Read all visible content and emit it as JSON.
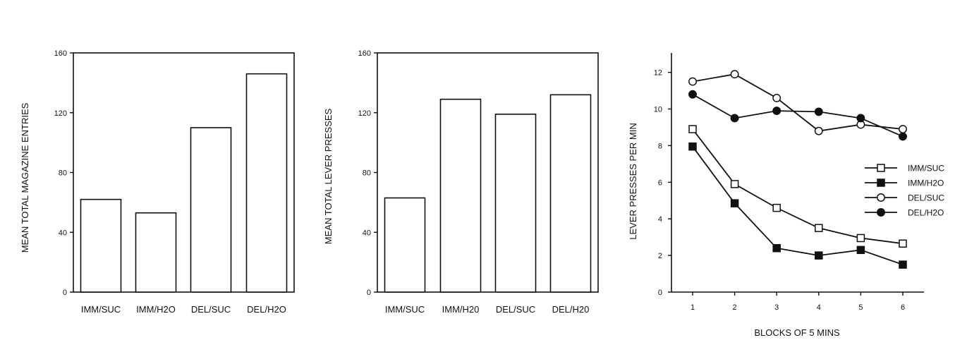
{
  "chart_data": [
    {
      "type": "bar",
      "categories": [
        "IMM/SUC",
        "IMM/H2O",
        "DEL/SUC",
        "DEL/H2O"
      ],
      "values": [
        62,
        53,
        110,
        146
      ],
      "ylabel": "MEAN TOTAL MAGAZINE ENTRIES",
      "xlabel": "",
      "ylim": [
        0,
        160
      ],
      "yticks": [
        0,
        40,
        80,
        120,
        160
      ],
      "grid": false
    },
    {
      "type": "bar",
      "categories": [
        "IMM/SUC",
        "IMM/H20",
        "DEL/SUC",
        "DEL/H20"
      ],
      "values": [
        63,
        129,
        119,
        132
      ],
      "ylabel": "MEAN TOTAL LEVER PRESSES",
      "xlabel": "",
      "ylim": [
        0,
        160
      ],
      "yticks": [
        0,
        40,
        80,
        120,
        160
      ],
      "grid": false
    },
    {
      "type": "line",
      "x": [
        1,
        2,
        3,
        4,
        5,
        6
      ],
      "xticks": [
        "1",
        "2",
        "3",
        "4",
        "5",
        "6"
      ],
      "ylim": [
        0,
        13
      ],
      "yticks": [
        0,
        2,
        4,
        6,
        8,
        10,
        12
      ],
      "xlabel": "BLOCKS OF 5 MINS",
      "ylabel": "LEVER PRESSES PER MIN",
      "grid": false,
      "legend_position": "right",
      "series": [
        {
          "name": "IMM/SUC",
          "marker": "open-square",
          "values": [
            8.9,
            5.9,
            4.6,
            3.5,
            2.95,
            2.65
          ]
        },
        {
          "name": "IMM/H2O",
          "marker": "filled-square",
          "values": [
            7.95,
            4.85,
            2.4,
            2.0,
            2.3,
            1.5
          ]
        },
        {
          "name": "DEL/SUC",
          "marker": "open-circle",
          "values": [
            11.5,
            11.9,
            10.6,
            8.8,
            9.15,
            8.9
          ]
        },
        {
          "name": "DEL/H2O",
          "marker": "filled-circle",
          "values": [
            10.8,
            9.5,
            9.9,
            9.85,
            9.5,
            8.5
          ]
        }
      ]
    }
  ]
}
